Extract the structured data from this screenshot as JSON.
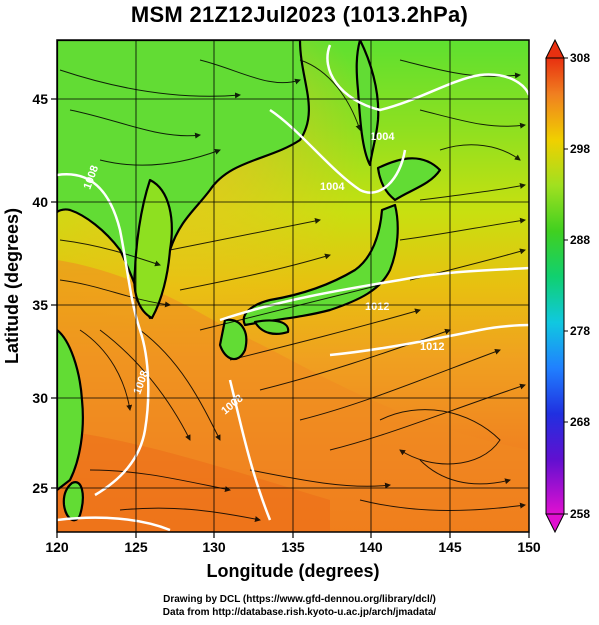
{
  "title": "MSM 21Z12Jul2023 (1013.2hPa)",
  "xaxis": {
    "label": "Longitude (degrees)",
    "ticks": [
      "120",
      "125",
      "130",
      "135",
      "140",
      "145",
      "150"
    ],
    "range": [
      120,
      150
    ]
  },
  "yaxis": {
    "label": "Latitude (degrees)",
    "ticks": [
      "25",
      "30",
      "35",
      "40",
      "45"
    ],
    "range": [
      22.5,
      48
    ]
  },
  "colorbar": {
    "ticks": [
      "308",
      "298",
      "288",
      "278",
      "268",
      "258"
    ],
    "range": [
      258,
      308
    ],
    "colors": [
      "#e000e0",
      "#3010c0",
      "#2060ff",
      "#10c8d8",
      "#20c040",
      "#a8e020",
      "#f0d000",
      "#f08020",
      "#e83010"
    ]
  },
  "contour_labels": [
    "1004",
    "1008",
    "1008",
    "1012",
    "1012",
    "1004",
    "1008"
  ],
  "credits": {
    "line1": "Drawing by DCL (https://www.gfd-dennou.org/library/dcl/)",
    "line2": "Data from http://database.rish.kyoto-u.ac.jp/arch/jmadata/"
  }
}
